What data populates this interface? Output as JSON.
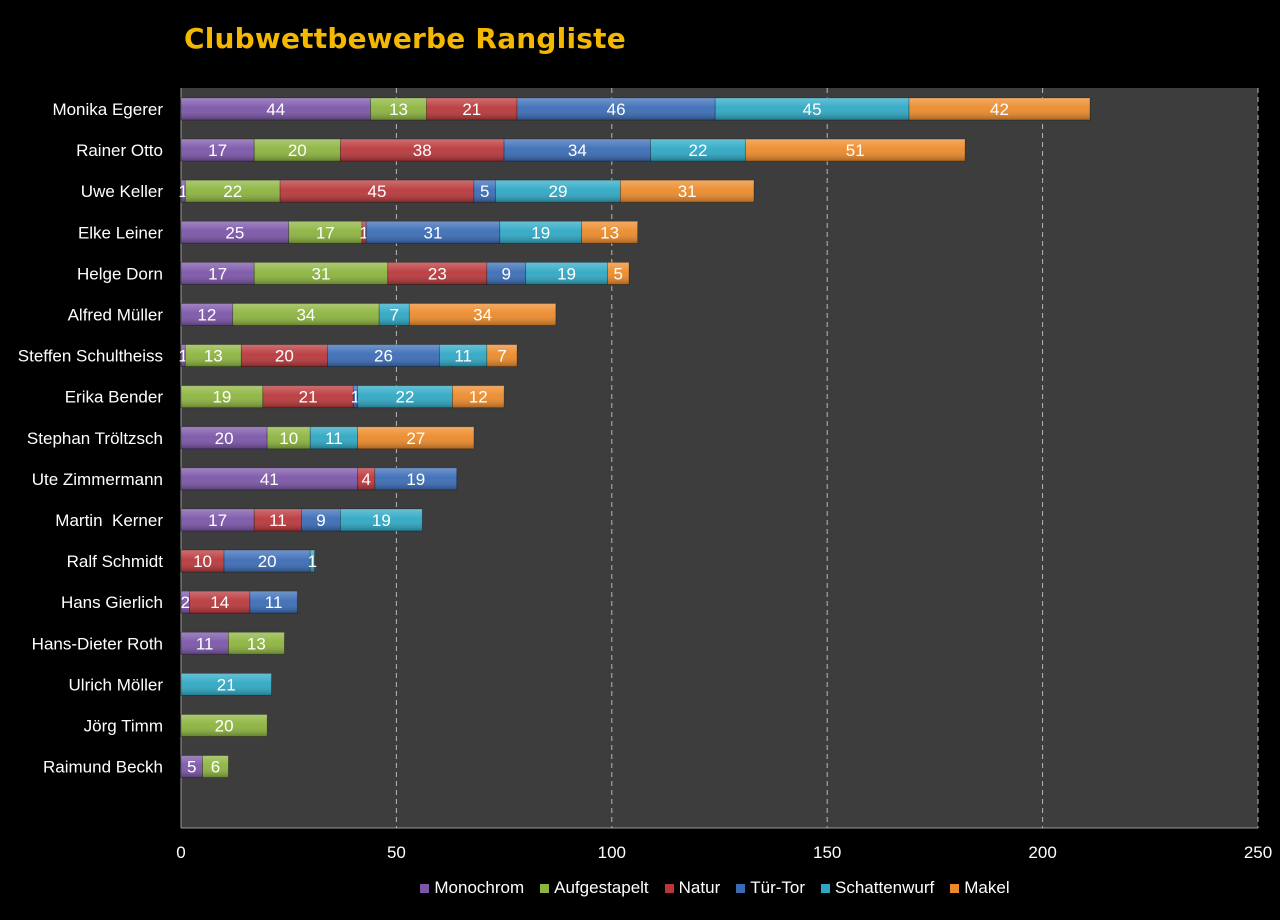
{
  "chart_data": {
    "type": "bar",
    "orientation": "horizontal",
    "stacked": true,
    "title": "Clubwettbewerbe Rangliste",
    "categories": [
      "Monika Egerer",
      "Rainer Otto",
      "Uwe Keller",
      "Elke Leiner",
      "Helge Dorn",
      "Alfred Müller",
      "Steffen Schultheiss",
      "Erika Bender",
      "Stephan Tröltzsch",
      "Ute Zimmermann",
      "Martin  Kerner",
      "Ralf Schmidt",
      "Hans Gierlich",
      "Hans-Dieter Roth",
      "Ulrich Möller",
      "Jörg Timm",
      "Raimund Beckh"
    ],
    "series": [
      {
        "name": "Monochrom",
        "color": "#7b55a8",
        "values": [
          44,
          17,
          1,
          25,
          17,
          12,
          1,
          0,
          20,
          41,
          17,
          0,
          2,
          11,
          0,
          0,
          5
        ]
      },
      {
        "name": "Aufgestapelt",
        "color": "#8cb43e",
        "values": [
          13,
          20,
          22,
          17,
          31,
          34,
          13,
          19,
          10,
          0,
          0,
          0,
          0,
          13,
          0,
          20,
          6
        ]
      },
      {
        "name": "Natur",
        "color": "#b9373a",
        "values": [
          21,
          38,
          45,
          1,
          23,
          0,
          20,
          21,
          0,
          4,
          11,
          10,
          14,
          0,
          0,
          0,
          0
        ]
      },
      {
        "name": "Tür-Tor",
        "color": "#3a6cb6",
        "values": [
          46,
          34,
          5,
          31,
          9,
          0,
          26,
          1,
          0,
          19,
          9,
          20,
          11,
          0,
          0,
          0,
          0
        ]
      },
      {
        "name": "Schattenwurf",
        "color": "#2ea8c4",
        "values": [
          45,
          22,
          29,
          19,
          19,
          7,
          11,
          22,
          11,
          0,
          19,
          1,
          0,
          0,
          21,
          0,
          0
        ]
      },
      {
        "name": "Makel",
        "color": "#ec8a2a",
        "values": [
          42,
          51,
          31,
          13,
          5,
          34,
          7,
          12,
          27,
          0,
          0,
          0,
          0,
          0,
          0,
          0,
          0
        ]
      }
    ],
    "xlim": [
      0,
      250
    ],
    "xticks": [
      0,
      50,
      100,
      150,
      200,
      250
    ],
    "grid": "vertical dashed",
    "plot_background": "#3d3d3d",
    "legend_position": "bottom"
  }
}
